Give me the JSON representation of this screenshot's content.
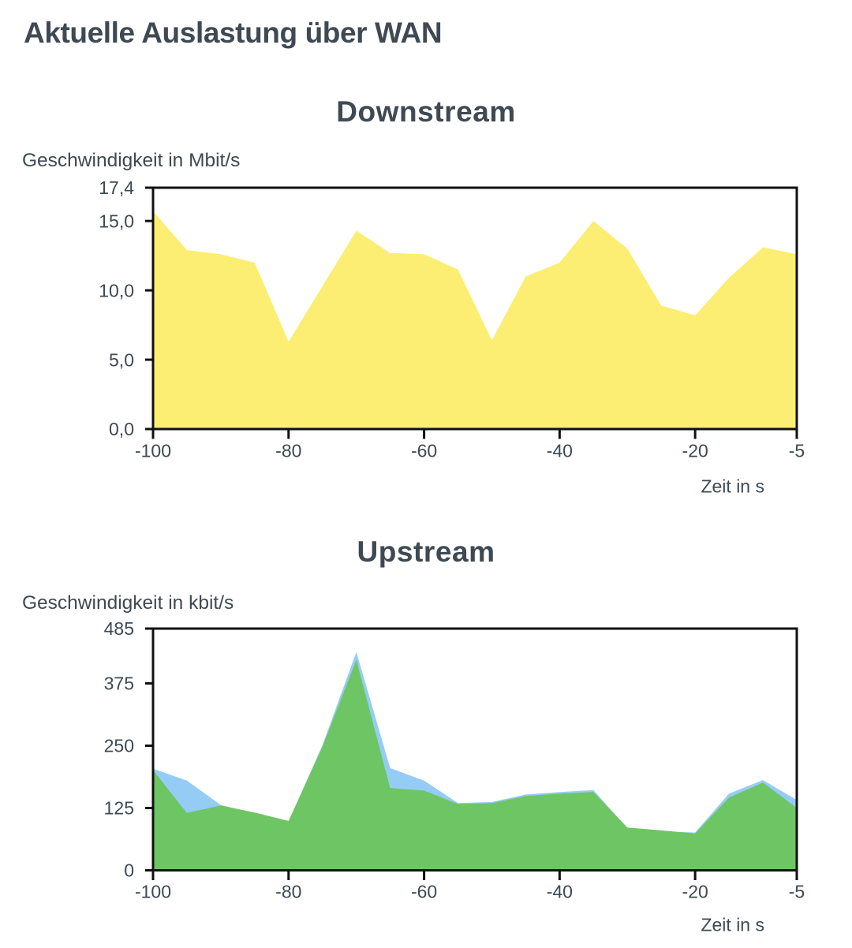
{
  "page": {
    "title": "Aktuelle Auslastung über WAN"
  },
  "colors": {
    "axis": "#111111",
    "text": "#3e4953",
    "downstream_fill": "#fbee72",
    "upstream_sent_fill": "#6ec564",
    "upstream_media_fill": "#95ccf6"
  },
  "chart_data": [
    {
      "type": "area",
      "title": "Downstream",
      "ylabel": "Geschwindigkeit in Mbit/s",
      "xlabel": "Zeit in s",
      "x": [
        -100,
        -95,
        -90,
        -85,
        -80,
        -75,
        -70,
        -65,
        -60,
        -55,
        -50,
        -45,
        -40,
        -35,
        -30,
        -25,
        -20,
        -15,
        -10,
        -5
      ],
      "series": [
        {
          "name": "downstream",
          "color": "#fbee72",
          "values": [
            15.7,
            12.9,
            12.6,
            12.0,
            6.3,
            10.3,
            14.3,
            12.7,
            12.6,
            11.5,
            6.4,
            11.0,
            12.0,
            15.0,
            13.0,
            8.9,
            8.2,
            10.9,
            13.1,
            12.6
          ]
        }
      ],
      "xlim": [
        -100,
        -5
      ],
      "ylim": [
        0,
        17.4
      ],
      "yticks": {
        "values": [
          0,
          5,
          10,
          15,
          17.4
        ],
        "labels": [
          "0,0",
          "5,0",
          "10,0",
          "15,0",
          "17,4"
        ]
      },
      "xticks": {
        "values": [
          -100,
          -80,
          -60,
          -40,
          -20,
          -5
        ],
        "labels": [
          "-100",
          "-80",
          "-60",
          "-40",
          "-20",
          "-5"
        ]
      },
      "grid": false,
      "legend": "none"
    },
    {
      "type": "area",
      "title": "Upstream",
      "ylabel": "Geschwindigkeit in kbit/s",
      "xlabel": "Zeit in s",
      "x": [
        -100,
        -95,
        -90,
        -85,
        -80,
        -75,
        -70,
        -65,
        -60,
        -55,
        -50,
        -45,
        -40,
        -35,
        -30,
        -25,
        -20,
        -15,
        -10,
        -5
      ],
      "series": [
        {
          "name": "upstream-background",
          "color": "#95ccf6",
          "values": [
            204,
            180,
            131,
            114,
            98,
            251,
            438,
            205,
            180,
            135,
            137,
            152,
            157,
            161,
            84,
            78,
            76,
            154,
            181,
            141
          ]
        },
        {
          "name": "upstream-foreground",
          "color": "#6ec564",
          "values": [
            201,
            115,
            130,
            116,
            99,
            248,
            422,
            165,
            160,
            133,
            135,
            149,
            154,
            157,
            86,
            80,
            74,
            146,
            176,
            125
          ]
        }
      ],
      "xlim": [
        -100,
        -5
      ],
      "ylim": [
        0,
        485
      ],
      "yticks": {
        "values": [
          0,
          125,
          250,
          375,
          485
        ],
        "labels": [
          "0",
          "125",
          "250",
          "375",
          "485"
        ]
      },
      "xticks": {
        "values": [
          -100,
          -80,
          -60,
          -40,
          -20,
          -5
        ],
        "labels": [
          "-100",
          "-80",
          "-60",
          "-40",
          "-20",
          "-5"
        ]
      },
      "grid": false,
      "legend": "none"
    }
  ]
}
